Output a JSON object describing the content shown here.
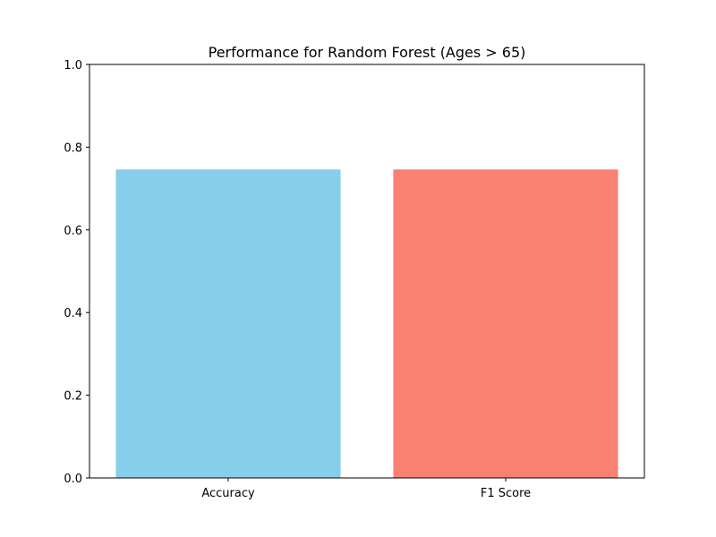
{
  "chart_data": {
    "type": "bar",
    "title": "Performance for Random Forest (Ages > 65)",
    "xlabel": "",
    "ylabel": "",
    "categories": [
      "Accuracy",
      "F1 Score"
    ],
    "values": [
      0.746,
      0.746
    ],
    "colors": [
      "#87ceeb",
      "#fa8072"
    ],
    "ylim": [
      0,
      1.0
    ],
    "yticks": [
      "0.0",
      "0.2",
      "0.4",
      "0.6",
      "0.8",
      "1.0"
    ],
    "grid": false,
    "legend": "none"
  }
}
